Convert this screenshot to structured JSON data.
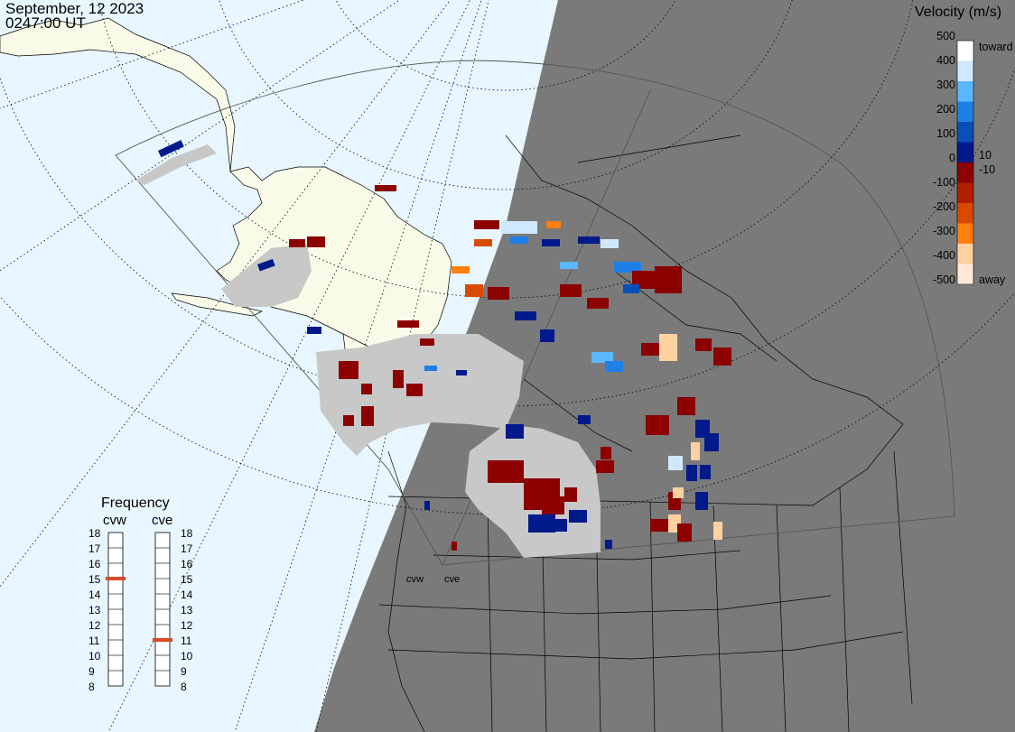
{
  "header": {
    "date": "September, 12 2023",
    "time": "0247:00 UT"
  },
  "legend": {
    "title": "Velocity (m/s)",
    "ticks": [
      "500",
      "400",
      "300",
      "200",
      "100",
      "0",
      "-100",
      "-200",
      "-300",
      "-400",
      "-500"
    ],
    "inner_ticks": [
      "10",
      "-10"
    ],
    "toward_label": "toward",
    "away_label": "away",
    "colors": [
      "#ffffff",
      "#cfe8ff",
      "#5ab8ff",
      "#1e7fe6",
      "#0a4fb8",
      "#001a8c",
      "#8c0000",
      "#b01e00",
      "#d84a00",
      "#ff7f0f",
      "#ffd0a0",
      "#ffe8d8"
    ]
  },
  "frequency": {
    "title": "Frequency",
    "radars": [
      {
        "name": "cvw",
        "value": 15
      },
      {
        "name": "cve",
        "value": 11
      }
    ],
    "scale": [
      "18",
      "17",
      "16",
      "15",
      "14",
      "13",
      "12",
      "11",
      "10",
      "9",
      "8"
    ]
  },
  "sites": {
    "cvw": "cvw",
    "cve": "cve"
  },
  "colors": {
    "night": "#7a7a7a",
    "day_ocean": "#e8f6ff",
    "day_land": "#fafae8",
    "ground_scatter": "#c8c8c8"
  }
}
